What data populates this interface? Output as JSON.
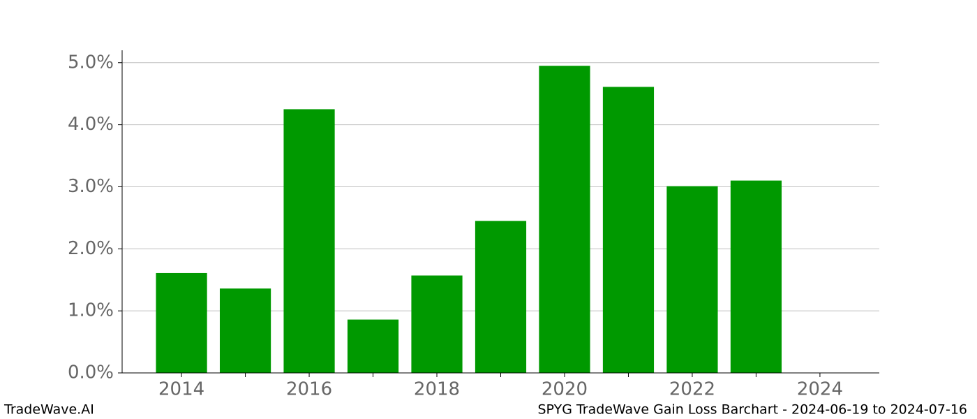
{
  "chart_data": {
    "type": "bar",
    "x": [
      2014,
      2015,
      2016,
      2017,
      2018,
      2019,
      2020,
      2021,
      2022,
      2023
    ],
    "values": [
      1.61,
      1.36,
      4.25,
      0.86,
      1.57,
      2.45,
      4.95,
      4.61,
      3.01,
      3.1
    ],
    "color": "#009900",
    "xlim": [
      2013.07,
      2024.93
    ],
    "xticks": [
      2014,
      2016,
      2018,
      2020,
      2022,
      2024
    ],
    "xminorticks": [
      2015,
      2017,
      2019,
      2021,
      2023
    ],
    "ylim": [
      0,
      5.2
    ],
    "yticks": [
      {
        "value": 0,
        "label": "0.0%"
      },
      {
        "value": 1,
        "label": "1.0%"
      },
      {
        "value": 2,
        "label": "2.0%"
      },
      {
        "value": 3,
        "label": "3.0%"
      },
      {
        "value": 4,
        "label": "4.0%"
      },
      {
        "value": 5,
        "label": "5.0%"
      }
    ],
    "grid": true,
    "footer_left": "TradeWave.AI",
    "footer_right": "SPYG TradeWave Gain Loss Barchart - 2024-06-19 to 2024-07-16"
  }
}
